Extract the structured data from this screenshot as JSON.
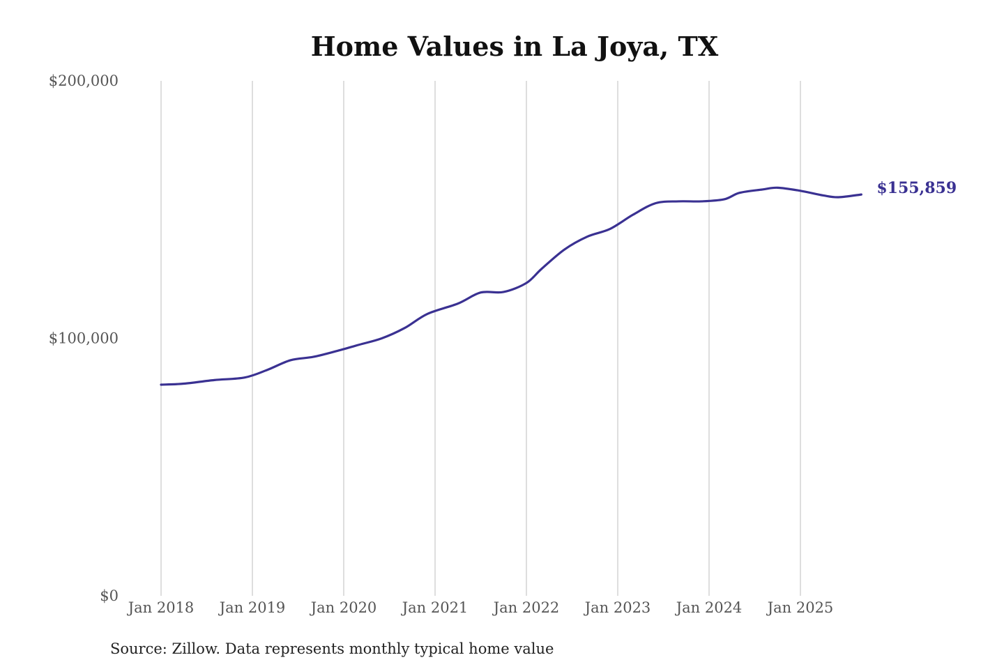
{
  "chart_data": {
    "type": "line",
    "title": "Home Values in La Joya, TX",
    "xlabel": "",
    "ylabel": "",
    "ylim": [
      0,
      200000
    ],
    "y_ticks": [
      {
        "value": 0,
        "label": "$0"
      },
      {
        "value": 100000,
        "label": "$100,000"
      },
      {
        "value": 200000,
        "label": "$200,000"
      }
    ],
    "x_ticks": [
      {
        "value": "2018-01",
        "label": "Jan 2018"
      },
      {
        "value": "2019-01",
        "label": "Jan 2019"
      },
      {
        "value": "2020-01",
        "label": "Jan 2020"
      },
      {
        "value": "2021-01",
        "label": "Jan 2021"
      },
      {
        "value": "2022-01",
        "label": "Jan 2022"
      },
      {
        "value": "2023-01",
        "label": "Jan 2023"
      },
      {
        "value": "2024-01",
        "label": "Jan 2024"
      },
      {
        "value": "2025-01",
        "label": "Jan 2025"
      }
    ],
    "grid": {
      "vertical": true,
      "horizontal": false
    },
    "series": [
      {
        "color": "#3a3192",
        "points": [
          {
            "x": "2018-01",
            "y": 82000
          },
          {
            "x": "2018-04",
            "y": 82400
          },
          {
            "x": "2018-08",
            "y": 83800
          },
          {
            "x": "2018-12",
            "y": 84800
          },
          {
            "x": "2019-03",
            "y": 87800
          },
          {
            "x": "2019-06",
            "y": 91500
          },
          {
            "x": "2019-09",
            "y": 92800
          },
          {
            "x": "2019-12",
            "y": 95000
          },
          {
            "x": "2020-03",
            "y": 97500
          },
          {
            "x": "2020-06",
            "y": 100000
          },
          {
            "x": "2020-09",
            "y": 104000
          },
          {
            "x": "2020-12",
            "y": 109500
          },
          {
            "x": "2021-04",
            "y": 113500
          },
          {
            "x": "2021-07",
            "y": 117800
          },
          {
            "x": "2021-10",
            "y": 118000
          },
          {
            "x": "2022-01",
            "y": 121500
          },
          {
            "x": "2022-03",
            "y": 127000
          },
          {
            "x": "2022-06",
            "y": 134500
          },
          {
            "x": "2022-09",
            "y": 139500
          },
          {
            "x": "2022-12",
            "y": 142500
          },
          {
            "x": "2023-03",
            "y": 148000
          },
          {
            "x": "2023-06",
            "y": 152500
          },
          {
            "x": "2023-09",
            "y": 153200
          },
          {
            "x": "2023-12",
            "y": 153200
          },
          {
            "x": "2024-03",
            "y": 154000
          },
          {
            "x": "2024-05",
            "y": 156500
          },
          {
            "x": "2024-08",
            "y": 157800
          },
          {
            "x": "2024-10",
            "y": 158500
          },
          {
            "x": "2025-01",
            "y": 157300
          },
          {
            "x": "2025-04",
            "y": 155500
          },
          {
            "x": "2025-06",
            "y": 154800
          },
          {
            "x": "2025-09",
            "y": 155859
          }
        ]
      }
    ],
    "end_label": "$155,859",
    "source": "Source: Zillow. Data represents monthly typical home value"
  }
}
